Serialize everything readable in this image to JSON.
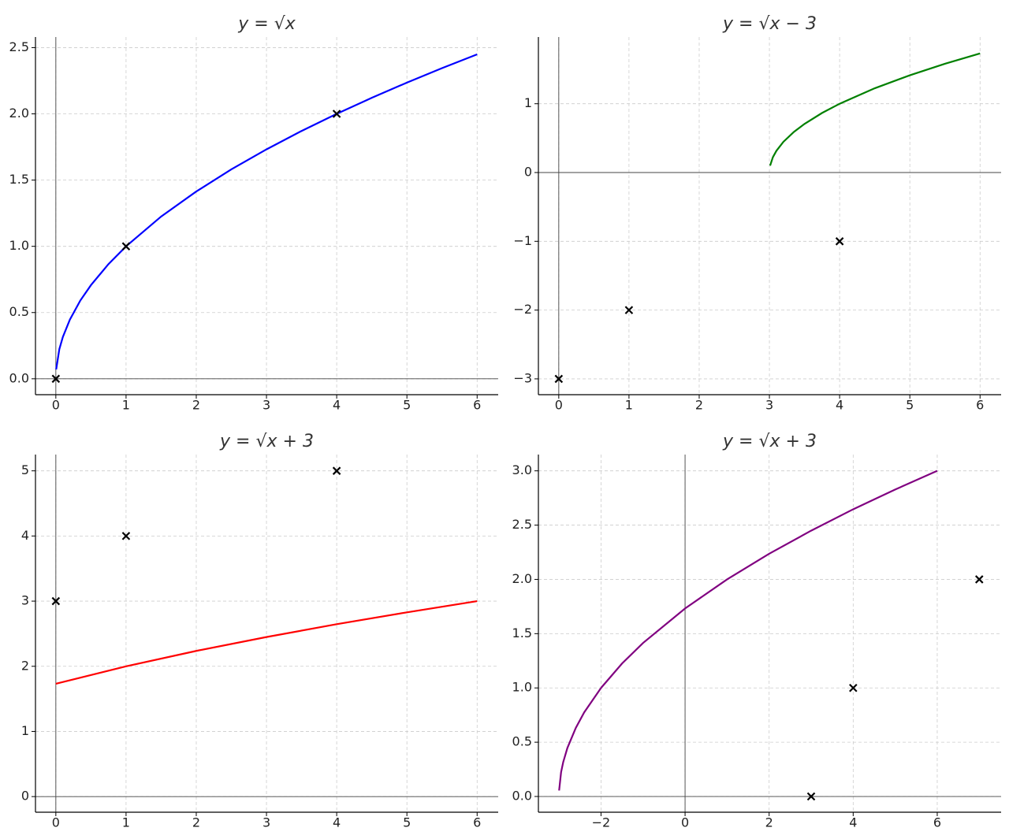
{
  "chart_data": [
    {
      "type": "line",
      "title": "y = √x",
      "xlim": [
        -0.29,
        6.3
      ],
      "ylim": [
        -0.12,
        2.58
      ],
      "xticks": [
        0,
        1,
        2,
        3,
        4,
        5,
        6
      ],
      "yticks": [
        {
          "value": 0,
          "label": "0.0"
        },
        0.5,
        {
          "value": 1,
          "label": "1.0"
        },
        1.5,
        {
          "value": 2,
          "label": "2.0"
        },
        2.5
      ],
      "grid": true,
      "series": [
        {
          "color": "#0000ff",
          "x": [
            0.005,
            0.05,
            0.1,
            0.2,
            0.35,
            0.5,
            0.75,
            1,
            1.5,
            2,
            2.5,
            3,
            3.5,
            4,
            4.5,
            5,
            5.5,
            6
          ],
          "values": [
            0.071,
            0.224,
            0.316,
            0.447,
            0.592,
            0.707,
            0.866,
            1,
            1.225,
            1.414,
            1.581,
            1.732,
            1.871,
            2,
            2.121,
            2.236,
            2.345,
            2.449
          ]
        },
        {
          "color": "#000000",
          "marker": "x",
          "x": [
            0,
            1,
            4
          ],
          "values": [
            0,
            1,
            2
          ]
        }
      ]
    },
    {
      "type": "line",
      "title": "y = √x − 3",
      "xlim": [
        -0.29,
        6.3
      ],
      "ylim": [
        -3.23,
        1.97
      ],
      "xticks": [
        0,
        1,
        2,
        3,
        4,
        5,
        6
      ],
      "yticks": [
        {
          "value": -3,
          "label": "−3"
        },
        {
          "value": -2,
          "label": "−2"
        },
        {
          "value": -1,
          "label": "−1"
        },
        0,
        1
      ],
      "grid": true,
      "series": [
        {
          "color": "#008000",
          "x": [
            3.01,
            3.05,
            3.1,
            3.2,
            3.35,
            3.5,
            3.75,
            4,
            4.5,
            5,
            5.5,
            6
          ],
          "values": [
            0.1,
            0.224,
            0.316,
            0.447,
            0.592,
            0.707,
            0.866,
            1,
            1.225,
            1.414,
            1.581,
            1.732
          ]
        },
        {
          "color": "#000000",
          "marker": "x",
          "x": [
            0,
            1,
            4
          ],
          "values": [
            -3,
            -2,
            -1
          ]
        }
      ]
    },
    {
      "type": "line",
      "title": "y = √x + 3",
      "xlim": [
        -0.29,
        6.3
      ],
      "ylim": [
        -0.24,
        5.25
      ],
      "xticks": [
        0,
        1,
        2,
        3,
        4,
        5,
        6
      ],
      "yticks": [
        0,
        1,
        2,
        3,
        4,
        5
      ],
      "grid": true,
      "series": [
        {
          "color": "#ff0000",
          "x": [
            0,
            1,
            2,
            3,
            4,
            5,
            6
          ],
          "values": [
            1.732,
            2,
            2.236,
            2.449,
            2.646,
            2.828,
            3
          ]
        },
        {
          "color": "#000000",
          "marker": "x",
          "x": [
            0,
            1,
            4
          ],
          "values": [
            3,
            4,
            5
          ]
        }
      ]
    },
    {
      "type": "line",
      "title": "y = √x + 3",
      "xlim": [
        -3.49,
        7.52
      ],
      "ylim": [
        -0.145,
        3.15
      ],
      "xticks": [
        {
          "value": -2,
          "label": "−2"
        },
        0,
        2,
        4,
        6
      ],
      "yticks": [
        {
          "value": 0,
          "label": "0.0"
        },
        0.5,
        {
          "value": 1,
          "label": "1.0"
        },
        1.5,
        {
          "value": 2,
          "label": "2.0"
        },
        2.5,
        {
          "value": 3,
          "label": "3.0"
        }
      ],
      "grid": true,
      "series": [
        {
          "color": "#800080",
          "x": [
            -2.997,
            -2.95,
            -2.9,
            -2.8,
            -2.6,
            -2.4,
            -2,
            -1.5,
            -1,
            0,
            1,
            2,
            3,
            4,
            5,
            6
          ],
          "values": [
            0.055,
            0.224,
            0.316,
            0.447,
            0.632,
            0.775,
            1,
            1.225,
            1.414,
            1.732,
            2,
            2.236,
            2.449,
            2.646,
            2.828,
            3
          ]
        },
        {
          "color": "#000000",
          "marker": "x",
          "x": [
            3,
            4,
            7
          ],
          "values": [
            0,
            1,
            2
          ]
        }
      ]
    }
  ]
}
